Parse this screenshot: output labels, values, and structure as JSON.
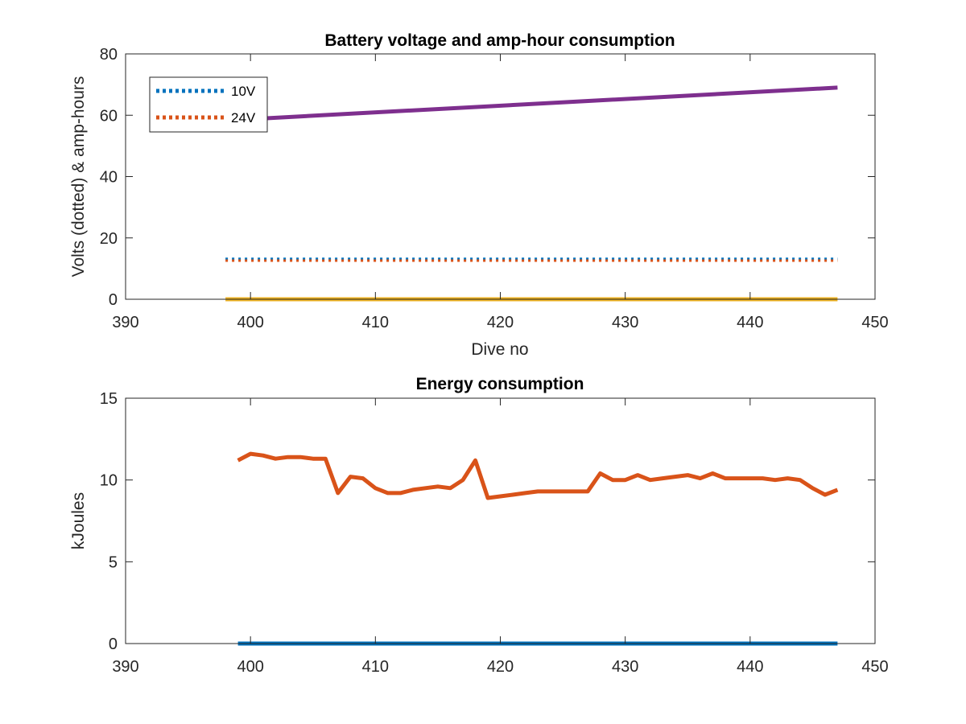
{
  "chart_data": [
    {
      "type": "line",
      "title": "Battery voltage and amp-hour consumption",
      "xlabel": "Dive no",
      "ylabel": "Volts (dotted) & amp-hours",
      "xlim": [
        390,
        450
      ],
      "ylim": [
        0,
        80
      ],
      "xticks": [
        390,
        400,
        410,
        420,
        430,
        440,
        450
      ],
      "yticks": [
        0,
        20,
        40,
        60,
        80
      ],
      "grid": false,
      "legend_position": "top-left",
      "series": [
        {
          "name": "10V",
          "style": "dotted",
          "color": "#0072BD",
          "x": [
            398,
            447
          ],
          "y": [
            13.2,
            13.2
          ]
        },
        {
          "name": "24V",
          "style": "dotted",
          "color": "#D95319",
          "x": [
            398,
            447
          ],
          "y": [
            12.6,
            12.6
          ]
        },
        {
          "style": "solid",
          "color": "#7E2F8E",
          "x": [
            398,
            447
          ],
          "y": [
            58.3,
            69
          ]
        },
        {
          "style": "solid",
          "color": "#EDB120",
          "x": [
            398,
            447
          ],
          "y": [
            0,
            0
          ]
        }
      ]
    },
    {
      "type": "line",
      "title": "Energy consumption",
      "xlabel": "",
      "ylabel": "kJoules",
      "xlim": [
        390,
        450
      ],
      "ylim": [
        0,
        15
      ],
      "xticks": [
        390,
        400,
        410,
        420,
        430,
        440,
        450
      ],
      "yticks": [
        0,
        5,
        10,
        15
      ],
      "grid": false,
      "series": [
        {
          "style": "solid",
          "color": "#D95319",
          "x": [
            399,
            400,
            401,
            402,
            403,
            404,
            405,
            406,
            407,
            408,
            409,
            410,
            411,
            412,
            413,
            414,
            415,
            416,
            417,
            418,
            419,
            420,
            421,
            422,
            423,
            424,
            425,
            426,
            427,
            428,
            429,
            430,
            431,
            432,
            433,
            434,
            435,
            436,
            437,
            438,
            439,
            440,
            441,
            442,
            443,
            444,
            445,
            446,
            447
          ],
          "y": [
            11.2,
            11.6,
            11.5,
            11.3,
            11.4,
            11.4,
            11.3,
            11.3,
            9.2,
            10.2,
            10.1,
            9.5,
            9.2,
            9.2,
            9.4,
            9.5,
            9.6,
            9.5,
            10.0,
            11.2,
            8.9,
            9.0,
            9.1,
            9.2,
            9.3,
            9.3,
            9.3,
            9.3,
            9.3,
            10.4,
            10.0,
            10.0,
            10.3,
            10.0,
            10.1,
            10.2,
            10.3,
            10.1,
            10.4,
            10.1,
            10.1,
            10.1,
            10.1,
            10.0,
            10.1,
            10.0,
            9.5,
            9.1,
            9.4
          ]
        },
        {
          "style": "solid",
          "color": "#0072BD",
          "x": [
            399,
            447
          ],
          "y": [
            0,
            0
          ]
        }
      ]
    }
  ]
}
